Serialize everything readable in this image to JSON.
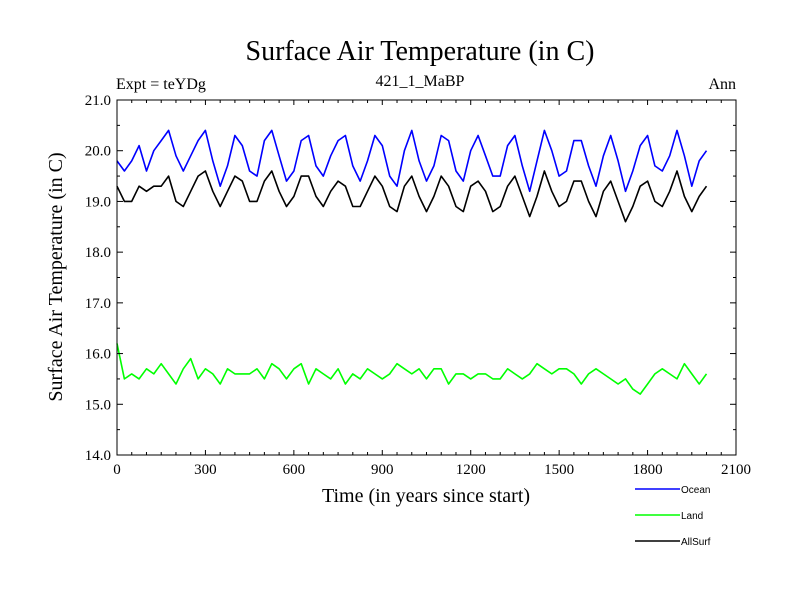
{
  "chart_data": {
    "type": "line",
    "title": "Surface Air Temperature (in C)",
    "subtitle": "421_1_MaBP",
    "left_label": "Expt = teYDg",
    "right_label": "Ann",
    "xlabel": "Time (in years since start)",
    "ylabel": "Surface Air Temperature (in C)",
    "xlim": [
      0,
      2100
    ],
    "ylim": [
      14.0,
      21.0
    ],
    "x_ticks": [
      0,
      300,
      600,
      900,
      1200,
      1500,
      1800,
      2100
    ],
    "x_tick_labels": [
      "0",
      "300",
      "600",
      "900",
      "1200",
      "1500",
      "1800",
      "2100"
    ],
    "y_ticks": [
      14.0,
      15.0,
      16.0,
      17.0,
      18.0,
      19.0,
      20.0,
      21.0
    ],
    "y_tick_labels": [
      "14.0",
      "15.0",
      "16.0",
      "17.0",
      "18.0",
      "19.0",
      "20.0",
      "21.0"
    ],
    "grid": false,
    "legend_position": "bottom-right",
    "x_step": 25,
    "series": [
      {
        "name": "Ocean",
        "color": "#0000ff",
        "x_start": 0,
        "values": [
          19.8,
          19.6,
          19.8,
          20.1,
          19.6,
          20.0,
          20.2,
          20.4,
          19.9,
          19.6,
          19.9,
          20.2,
          20.4,
          19.8,
          19.3,
          19.7,
          20.3,
          20.1,
          19.6,
          19.5,
          20.2,
          20.4,
          19.9,
          19.4,
          19.6,
          20.2,
          20.3,
          19.7,
          19.5,
          19.9,
          20.2,
          20.3,
          19.7,
          19.4,
          19.8,
          20.3,
          20.1,
          19.5,
          19.3,
          20.0,
          20.4,
          19.8,
          19.4,
          19.7,
          20.3,
          20.2,
          19.6,
          19.4,
          20.0,
          20.3,
          19.9,
          19.5,
          19.5,
          20.1,
          20.3,
          19.7,
          19.2,
          19.8,
          20.4,
          20.0,
          19.5,
          19.6,
          20.2,
          20.2,
          19.7,
          19.3,
          19.9,
          20.3,
          19.8,
          19.2,
          19.6,
          20.1,
          20.3,
          19.7,
          19.6,
          19.9,
          20.4,
          19.9,
          19.3,
          19.8,
          20.0
        ]
      },
      {
        "name": "Land",
        "color": "#00ff00",
        "x_start": 0,
        "values": [
          16.2,
          15.5,
          15.6,
          15.5,
          15.7,
          15.6,
          15.8,
          15.6,
          15.4,
          15.7,
          15.9,
          15.5,
          15.7,
          15.6,
          15.4,
          15.7,
          15.6,
          15.6,
          15.6,
          15.7,
          15.5,
          15.8,
          15.7,
          15.5,
          15.7,
          15.8,
          15.4,
          15.7,
          15.6,
          15.5,
          15.7,
          15.4,
          15.6,
          15.5,
          15.7,
          15.6,
          15.5,
          15.6,
          15.8,
          15.7,
          15.6,
          15.7,
          15.5,
          15.7,
          15.7,
          15.4,
          15.6,
          15.6,
          15.5,
          15.6,
          15.6,
          15.5,
          15.5,
          15.7,
          15.6,
          15.5,
          15.6,
          15.8,
          15.7,
          15.6,
          15.7,
          15.7,
          15.6,
          15.4,
          15.6,
          15.7,
          15.6,
          15.5,
          15.4,
          15.5,
          15.3,
          15.2,
          15.4,
          15.6,
          15.7,
          15.6,
          15.5,
          15.8,
          15.6,
          15.4,
          15.6
        ]
      },
      {
        "name": "AllSurf",
        "color": "#000000",
        "x_start": 0,
        "values": [
          19.3,
          19.0,
          19.0,
          19.3,
          19.2,
          19.3,
          19.3,
          19.5,
          19.0,
          18.9,
          19.2,
          19.5,
          19.6,
          19.2,
          18.9,
          19.2,
          19.5,
          19.4,
          19.0,
          19.0,
          19.4,
          19.6,
          19.2,
          18.9,
          19.1,
          19.5,
          19.5,
          19.1,
          18.9,
          19.2,
          19.4,
          19.3,
          18.9,
          18.9,
          19.2,
          19.5,
          19.3,
          18.9,
          18.8,
          19.3,
          19.5,
          19.1,
          18.8,
          19.1,
          19.5,
          19.3,
          18.9,
          18.8,
          19.3,
          19.4,
          19.2,
          18.8,
          18.9,
          19.3,
          19.5,
          19.1,
          18.7,
          19.1,
          19.6,
          19.2,
          18.9,
          19.0,
          19.4,
          19.4,
          19.0,
          18.7,
          19.2,
          19.4,
          19.0,
          18.6,
          18.9,
          19.3,
          19.4,
          19.0,
          18.9,
          19.2,
          19.6,
          19.1,
          18.8,
          19.1,
          19.3
        ]
      }
    ]
  }
}
